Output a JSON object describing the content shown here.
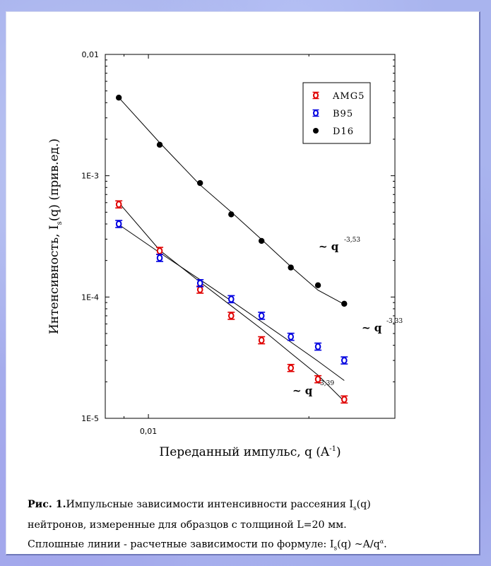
{
  "chart_data": {
    "type": "scatter",
    "title": "",
    "xlabel_prefix": "Переданный импульс, q (A",
    "xlabel_sup": "-1",
    "xlabel_suffix": ")",
    "ylabel_prefix": "Интенсивность, I",
    "ylabel_sub": "s",
    "ylabel_suffix": "(q) (прив.ед.)",
    "x_scale": "log",
    "y_scale": "log",
    "xlim": [
      0.0083,
      0.029
    ],
    "ylim": [
      1e-05,
      0.01
    ],
    "x_ticks": [
      {
        "value": 0.01,
        "label": "0,01"
      }
    ],
    "y_ticks": [
      {
        "value": 1e-05,
        "label": "1E-5"
      },
      {
        "value": 0.0001,
        "label": "1E-4"
      },
      {
        "value": 0.001,
        "label": "1E-3"
      },
      {
        "value": 0.01,
        "label": "0,01"
      }
    ],
    "legend_position": "top-right",
    "series": [
      {
        "name": "AMG5",
        "color": "#e00000",
        "marker": "open-circle-with-errorbar",
        "x": [
          0.0088,
          0.0105,
          0.0125,
          0.0143,
          0.0163,
          0.0185,
          0.0208,
          0.0233
        ],
        "y": [
          0.00058,
          0.00024,
          0.000115,
          7e-05,
          4.4e-05,
          2.6e-05,
          2.1e-05,
          1.43e-05
        ],
        "fit_y": [
          0.0006,
          0.000243,
          0.000133,
          8.46e-05,
          5.45e-05,
          3.45e-05,
          2.27e-05,
          1.38e-05
        ]
      },
      {
        "name": "B95",
        "color": "#0000e0",
        "marker": "open-circle-with-errorbar",
        "x": [
          0.0088,
          0.0105,
          0.0125,
          0.0143,
          0.0163,
          0.0185,
          0.0208,
          0.0233
        ],
        "y": [
          0.0004,
          0.00021,
          0.00013,
          9.6e-05,
          7e-05,
          4.7e-05,
          3.9e-05,
          3e-05
        ],
        "fit_y": [
          0.000395,
          0.000232,
          0.000139,
          9.31e-05,
          6.25e-05,
          4.25e-05,
          2.96e-05,
          2.05e-05
        ]
      },
      {
        "name": "D16",
        "color": "#000000",
        "marker": "filled-circle",
        "x": [
          0.0088,
          0.0105,
          0.0125,
          0.0143,
          0.0163,
          0.0185,
          0.0208,
          0.0233
        ],
        "y": [
          0.0044,
          0.0018,
          0.00087,
          0.00048,
          0.00029,
          0.000175,
          0.000125,
          8.8e-05
        ],
        "fit_y": [
          0.0044,
          0.00187,
          0.00084,
          0.000502,
          0.000298,
          0.000178,
          0.000114,
          8.7e-05
        ]
      }
    ],
    "annotations": [
      {
        "label": "~ q",
        "exponent": "-3,53",
        "series": "D16"
      },
      {
        "label": "~ q",
        "exponent": "-3,33",
        "series": "B95"
      },
      {
        "label": "~ q",
        "exponent": "-3,39",
        "series": "AMG5"
      }
    ]
  },
  "caption": {
    "figure_label": "Рис. 1.",
    "line1_text": "Импульсные зависимости интенсивности рассеяния I",
    "line1_sub": "s",
    "line1_end": "(q)",
    "line2": "нейтронов, измеренные для образцов с толщиной L=20 мм.",
    "line3_text": "Сплошные линии - расчетные зависимости по формуле: I",
    "line3_sub": "s",
    "line3_mid": "(q) ~A/q",
    "line3_sup": "α",
    "line3_end": "."
  }
}
